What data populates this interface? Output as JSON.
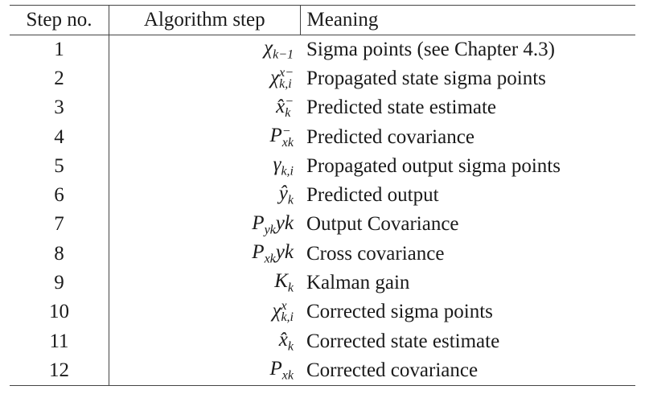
{
  "table": {
    "headers": [
      "Step no.",
      "Algorithm step",
      "Meaning"
    ],
    "rows": [
      {
        "step": "1",
        "symbol": "χ_{k−1}",
        "meaning": "Sigma points (see Chapter 4.3)"
      },
      {
        "step": "2",
        "symbol": "χ^{x−}_{k,i}",
        "meaning": "Propagated state sigma points"
      },
      {
        "step": "3",
        "symbol": "x̂^{−}_{k}",
        "meaning": "Predicted state estimate"
      },
      {
        "step": "4",
        "symbol": "P^{−}_{x_k}",
        "meaning": "Predicted covariance"
      },
      {
        "step": "5",
        "symbol": "γ_{k,i}",
        "meaning": "Propagated output sigma points"
      },
      {
        "step": "6",
        "symbol": "ŷ_{k}",
        "meaning": "Predicted output"
      },
      {
        "step": "7",
        "symbol": "P_{y_k y_k}",
        "meaning": "Output Covariance"
      },
      {
        "step": "8",
        "symbol": "P_{x_k y_k}",
        "meaning": "Cross covariance"
      },
      {
        "step": "9",
        "symbol": "K_{k}",
        "meaning": "Kalman gain"
      },
      {
        "step": "10",
        "symbol": "χ^{x}_{k,i}",
        "meaning": "Corrected sigma points"
      },
      {
        "step": "11",
        "symbol": "x̂_{k}",
        "meaning": "Corrected state estimate"
      },
      {
        "step": "12",
        "symbol": "P_{x_k}",
        "meaning": "Corrected covariance"
      }
    ]
  }
}
